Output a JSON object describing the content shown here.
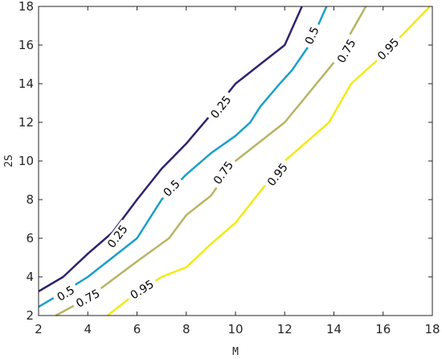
{
  "chart_data": {
    "type": "contour",
    "xlabel": "M",
    "ylabel": "2S",
    "xlim": [
      2,
      18
    ],
    "ylim": [
      2,
      18
    ],
    "xticks": [
      2,
      4,
      6,
      8,
      10,
      12,
      14,
      16,
      18
    ],
    "yticks": [
      2,
      4,
      6,
      8,
      10,
      12,
      14,
      16,
      18
    ],
    "grid": false,
    "series": [
      {
        "level": "0.25",
        "color": "#2d2470",
        "points": [
          [
            2,
            3.25
          ],
          [
            3,
            4
          ],
          [
            4,
            5.2
          ],
          [
            5,
            6.3
          ],
          [
            6,
            8
          ],
          [
            7,
            9.6
          ],
          [
            8,
            10.9
          ],
          [
            9,
            12.4
          ],
          [
            10,
            14
          ],
          [
            11,
            15
          ],
          [
            12,
            16
          ],
          [
            12.7,
            18
          ]
        ],
        "labels": [
          [
            5.2,
            6.1
          ],
          [
            9.4,
            12.8
          ]
        ]
      },
      {
        "level": "0.5",
        "color": "#1a9fcb",
        "points": [
          [
            2,
            2.45
          ],
          [
            3,
            3.2
          ],
          [
            4,
            4
          ],
          [
            5,
            5
          ],
          [
            6,
            6
          ],
          [
            7,
            8
          ],
          [
            8,
            9.3
          ],
          [
            9,
            10.4
          ],
          [
            10,
            11.3
          ],
          [
            10.6,
            12
          ],
          [
            11,
            12.8
          ],
          [
            11.8,
            14
          ],
          [
            12.3,
            14.7
          ],
          [
            13,
            16
          ],
          [
            13.7,
            18
          ]
        ],
        "labels": [
          [
            3.1,
            3.15
          ],
          [
            7.4,
            8.6
          ],
          [
            13.1,
            16.5
          ]
        ]
      },
      {
        "level": "0.75",
        "color": "#b8b464",
        "points": [
          [
            2.7,
            2
          ],
          [
            4,
            2.9
          ],
          [
            6,
            4.8
          ],
          [
            7.3,
            6
          ],
          [
            8,
            7.2
          ],
          [
            9,
            8.2
          ],
          [
            10,
            10
          ],
          [
            12,
            12
          ],
          [
            14,
            15.1
          ],
          [
            15.3,
            18
          ]
        ],
        "labels": [
          [
            4,
            2.9
          ],
          [
            9.5,
            9.4
          ],
          [
            14.5,
            15.7
          ]
        ]
      },
      {
        "level": "0.95",
        "color": "#f0ec14",
        "points": [
          [
            4.8,
            2
          ],
          [
            6,
            3.2
          ],
          [
            7,
            4
          ],
          [
            8,
            4.5
          ],
          [
            9,
            5.7
          ],
          [
            10,
            6.8
          ],
          [
            11.8,
            9.7
          ],
          [
            12,
            10
          ],
          [
            13.8,
            12
          ],
          [
            14.7,
            14
          ],
          [
            16,
            15.5
          ],
          [
            17.9,
            18
          ]
        ],
        "labels": [
          [
            6.2,
            3.35
          ],
          [
            11.7,
            9.3
          ],
          [
            16.2,
            15.8
          ]
        ]
      }
    ]
  }
}
